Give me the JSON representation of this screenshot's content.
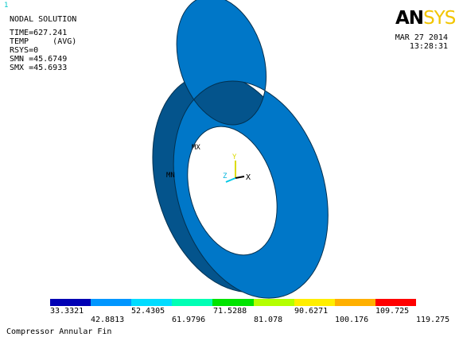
{
  "window_number": "1",
  "info_lines": [
    "NODAL SOLUTION",
    "TIME=627.241",
    "TEMP     (AVG)",
    "RSYS=0",
    "SMN =45.6749",
    "SMX =45.6933"
  ],
  "logo": {
    "part1": "AN",
    "part2": "SYS",
    "color1": "#000000",
    "color2": "#f2c500"
  },
  "date": "MAR 27 2014",
  "time": "13:28:31",
  "model": {
    "fill_color": "#0077c8",
    "mx_label": "MX",
    "mn_label": "MN",
    "triad": {
      "x": "X",
      "y": "Y",
      "z": "Z"
    }
  },
  "legend": {
    "colors": [
      "#0000b4",
      "#0096ff",
      "#00dcff",
      "#00ffb4",
      "#00e400",
      "#b4ff00",
      "#ffee00",
      "#ffb000",
      "#ff0000"
    ],
    "upper_labels": [
      "33.3321",
      "52.4305",
      "71.5288",
      "90.6271",
      "109.725"
    ],
    "lower_labels": [
      "42.8813",
      "61.9796",
      "81.078",
      "100.176",
      "119.275"
    ]
  },
  "footer_title": "Compressor Annular Fin"
}
